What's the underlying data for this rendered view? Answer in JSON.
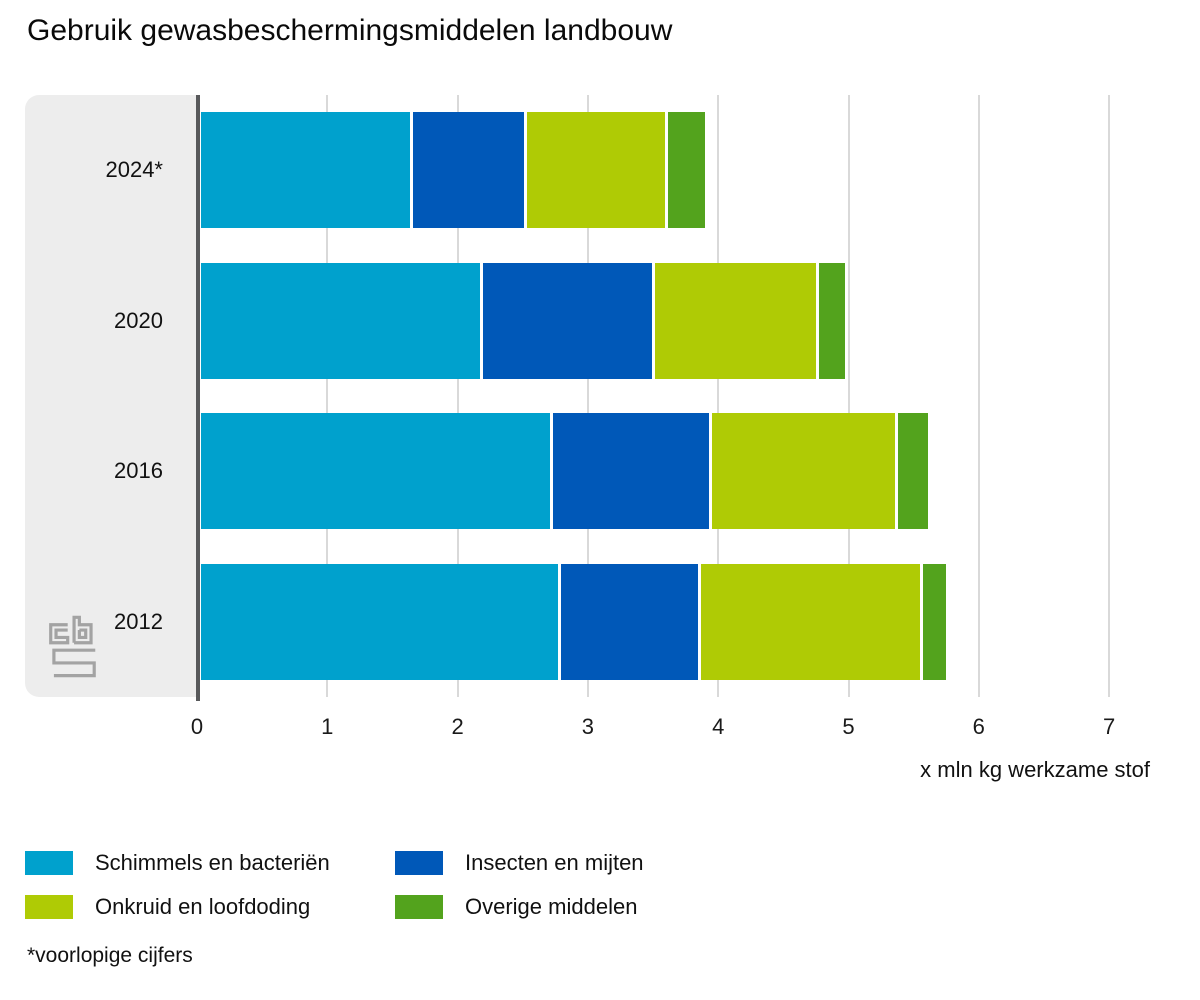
{
  "title": "Gebruik gewasbeschermingsmiddelen landbouw",
  "footnote": "*voorlopige cijfers",
  "chart_data": {
    "type": "bar",
    "orientation": "horizontal",
    "stacked": true,
    "categories": [
      "2024*",
      "2020",
      "2016",
      "2012"
    ],
    "series": [
      {
        "name": "Schimmels en bacteriën",
        "color": "#00a1cd",
        "values": [
          1.65,
          2.18,
          2.72,
          2.78
        ]
      },
      {
        "name": "Insecten en mijten",
        "color": "#0058b8",
        "values": [
          0.87,
          1.32,
          1.22,
          1.08
        ]
      },
      {
        "name": "Onkruid en loofdoding",
        "color": "#afcb05",
        "values": [
          1.08,
          1.26,
          1.43,
          1.7
        ]
      },
      {
        "name": "Overige middelen",
        "color": "#53a31d",
        "values": [
          0.3,
          0.21,
          0.24,
          0.19
        ]
      }
    ],
    "totals": [
      3.9,
      4.97,
      5.61,
      5.75
    ],
    "xlabel": "x mln kg werkzame stof",
    "xlim": [
      0,
      7.5
    ],
    "x_ticks": [
      0,
      1,
      2,
      3,
      4,
      5,
      6,
      7
    ],
    "grid": true,
    "legend_position": "bottom"
  },
  "style": {
    "panel_bg": "#ededed",
    "axis_line": "#58595b",
    "gridline": "#d9d9d9",
    "logo_gray": "#a3a3a3"
  },
  "logo": {
    "name": "cbs-logo"
  }
}
